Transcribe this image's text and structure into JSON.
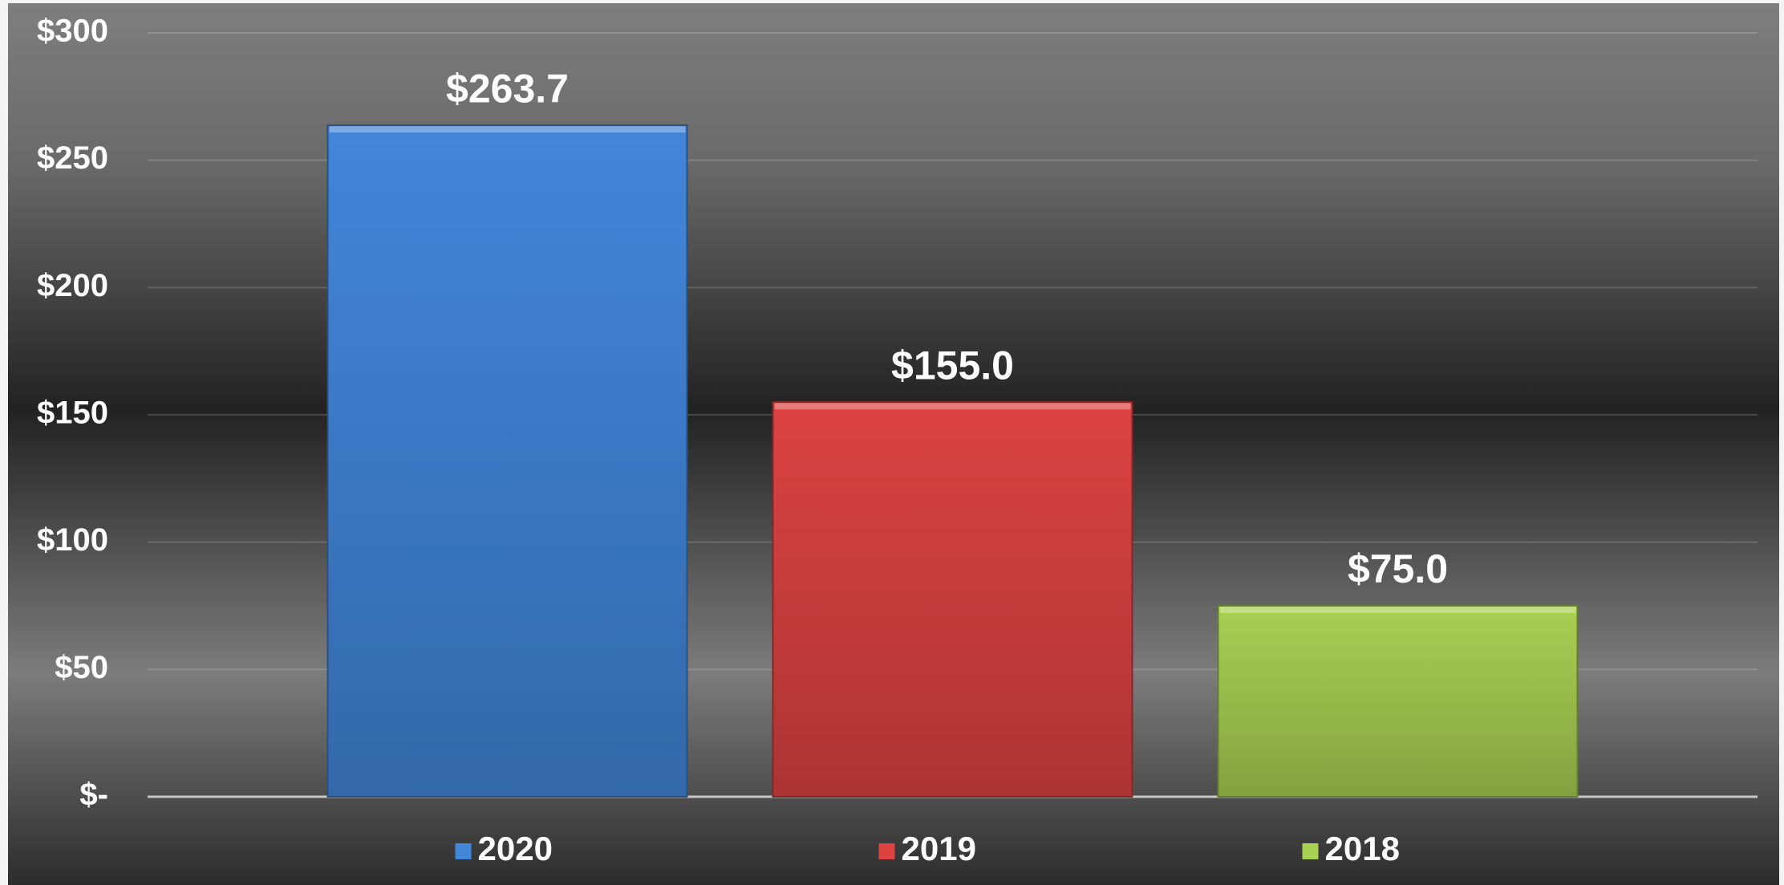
{
  "chart_data": {
    "type": "bar",
    "categories": [
      null
    ],
    "series": [
      {
        "name": "2020",
        "color": "#4286da",
        "values": [
          263.7
        ],
        "value_labels": [
          "$263.7"
        ]
      },
      {
        "name": "2019",
        "color": "#dc4341",
        "values": [
          155.0
        ],
        "value_labels": [
          "$155.0"
        ]
      },
      {
        "name": "2018",
        "color": "#a8d052",
        "values": [
          75.0
        ],
        "value_labels": [
          "$75.0"
        ]
      }
    ],
    "ylim": [
      0,
      300
    ],
    "yticks": [
      {
        "value": 0,
        "label": "$-"
      },
      {
        "value": 50,
        "label": "$50"
      },
      {
        "value": 100,
        "label": "$100"
      },
      {
        "value": 150,
        "label": "$150"
      },
      {
        "value": 200,
        "label": "$200"
      },
      {
        "value": 250,
        "label": "$250"
      },
      {
        "value": 300,
        "label": "$300"
      }
    ],
    "grid": true,
    "legend": "bottom"
  }
}
